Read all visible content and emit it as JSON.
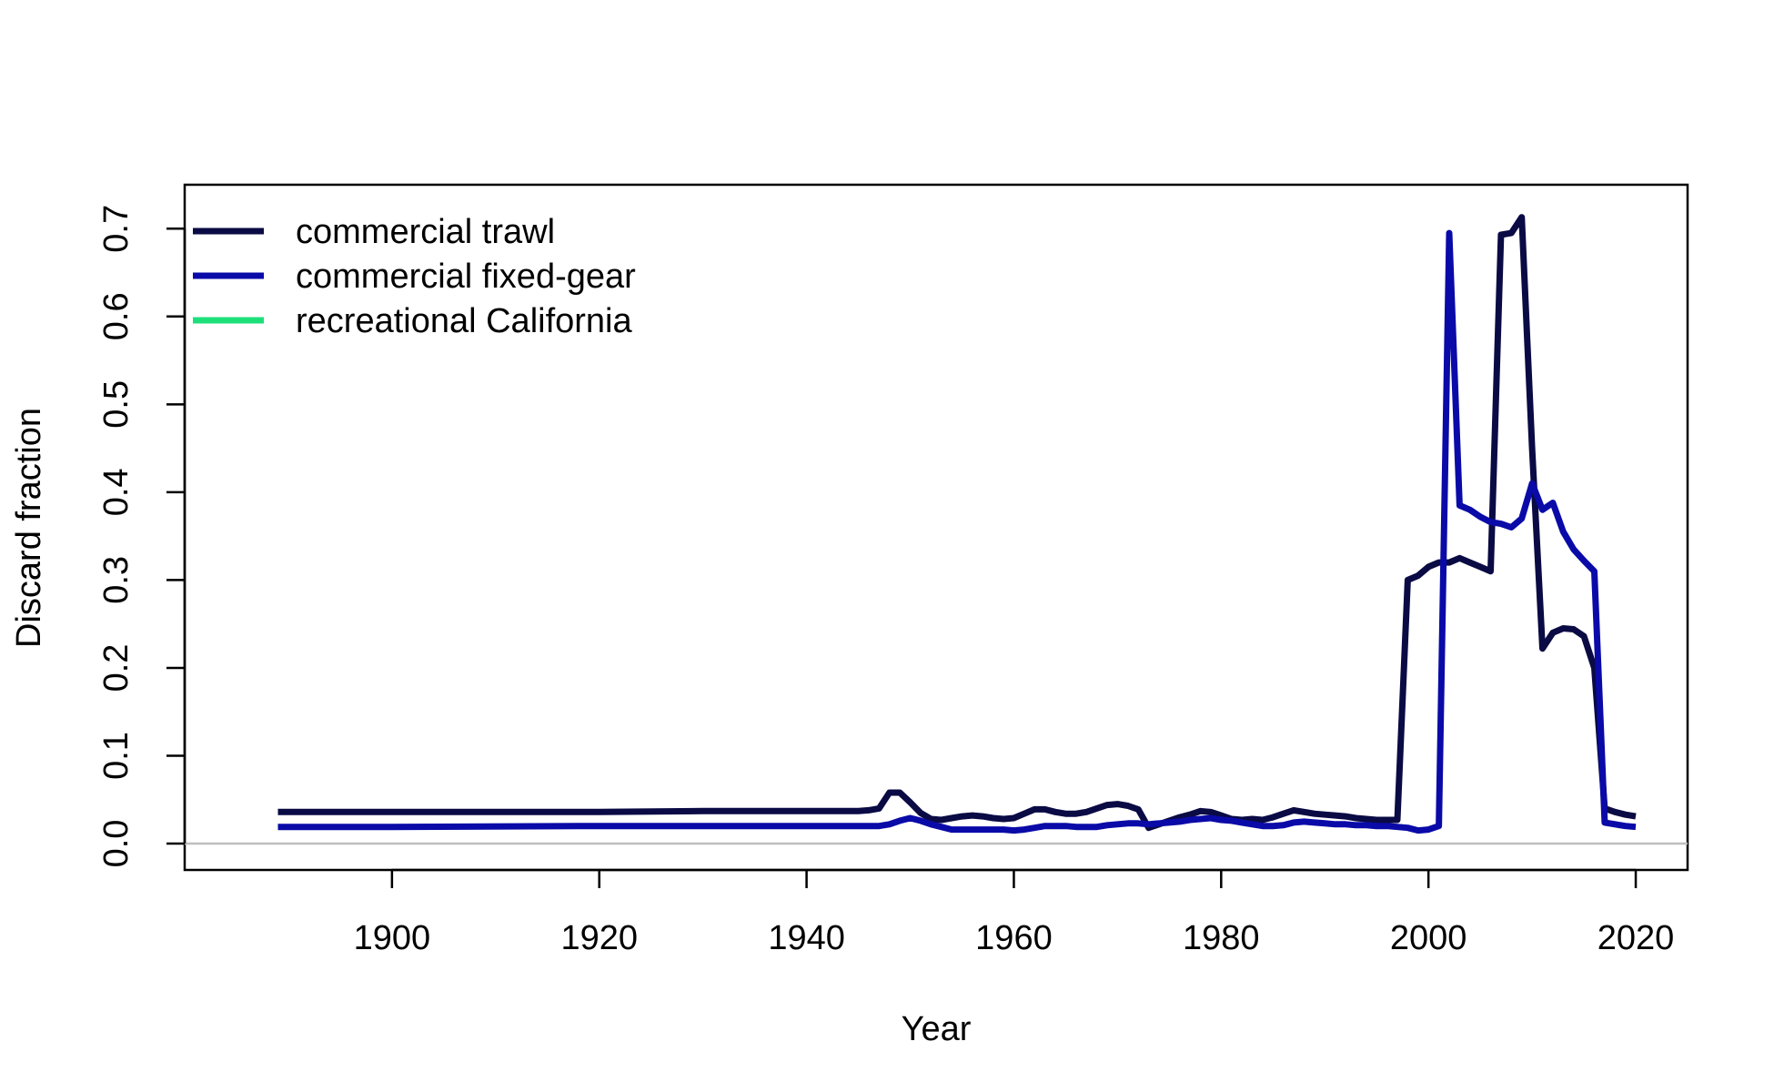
{
  "chart_data": {
    "type": "line",
    "title": "",
    "xlabel": "Year",
    "ylabel": "Discard fraction",
    "xlim": [
      1880,
      2025
    ],
    "ylim": [
      -0.03,
      0.75
    ],
    "xticks": [
      "1900",
      "1920",
      "1940",
      "1960",
      "1980",
      "2000",
      "2020"
    ],
    "yticks": [
      "0.0",
      "0.1",
      "0.2",
      "0.3",
      "0.4",
      "0.5",
      "0.6",
      "0.7"
    ],
    "grid": false,
    "legend_position": "top-left",
    "reference_line": {
      "y": 0,
      "color": "#bebebe"
    },
    "series": [
      {
        "name": "commercial trawl",
        "color": "#0a0a44",
        "x": [
          1889,
          1892,
          1900,
          1920,
          1930,
          1940,
          1945,
          1946,
          1947,
          1948,
          1949,
          1950,
          1951,
          1952,
          1953,
          1954,
          1955,
          1956,
          1957,
          1958,
          1959,
          1960,
          1961,
          1962,
          1963,
          1964,
          1965,
          1966,
          1967,
          1968,
          1969,
          1970,
          1971,
          1972,
          1973,
          1974,
          1975,
          1976,
          1977,
          1978,
          1979,
          1980,
          1981,
          1982,
          1983,
          1984,
          1985,
          1986,
          1987,
          1988,
          1989,
          1990,
          1991,
          1992,
          1993,
          1994,
          1995,
          1996,
          1997,
          1998,
          1999,
          2000,
          2001,
          2002,
          2003,
          2004,
          2005,
          2006,
          2007,
          2008,
          2009,
          2010,
          2011,
          2012,
          2013,
          2014,
          2015,
          2016,
          2017,
          2018,
          2019,
          2020
        ],
        "values": [
          0.036,
          0.036,
          0.036,
          0.036,
          0.037,
          0.037,
          0.037,
          0.038,
          0.04,
          0.058,
          0.058,
          0.047,
          0.035,
          0.028,
          0.027,
          0.029,
          0.031,
          0.032,
          0.031,
          0.029,
          0.028,
          0.029,
          0.034,
          0.039,
          0.039,
          0.036,
          0.034,
          0.034,
          0.036,
          0.04,
          0.044,
          0.045,
          0.043,
          0.039,
          0.018,
          0.022,
          0.026,
          0.03,
          0.033,
          0.037,
          0.036,
          0.032,
          0.028,
          0.027,
          0.028,
          0.027,
          0.03,
          0.034,
          0.038,
          0.036,
          0.034,
          0.033,
          0.032,
          0.031,
          0.029,
          0.028,
          0.027,
          0.027,
          0.027,
          0.3,
          0.305,
          0.315,
          0.32,
          0.32,
          0.325,
          0.32,
          0.315,
          0.31,
          0.693,
          0.695,
          0.713,
          0.45,
          0.222,
          0.24,
          0.245,
          0.244,
          0.236,
          0.2,
          0.04,
          0.036,
          0.033,
          0.031
        ]
      },
      {
        "name": "commercial fixed-gear",
        "color": "#0a0aa8",
        "x": [
          1889,
          1900,
          1920,
          1947,
          1948,
          1949,
          1950,
          1951,
          1952,
          1953,
          1954,
          1955,
          1956,
          1957,
          1958,
          1959,
          1960,
          1961,
          1962,
          1963,
          1964,
          1965,
          1966,
          1967,
          1968,
          1969,
          1970,
          1971,
          1972,
          1973,
          1974,
          1975,
          1976,
          1977,
          1978,
          1979,
          1980,
          1981,
          1982,
          1983,
          1984,
          1985,
          1986,
          1987,
          1988,
          1989,
          1990,
          1991,
          1992,
          1993,
          1994,
          1995,
          1996,
          1997,
          1998,
          1999,
          2000,
          2001,
          2002,
          2003,
          2004,
          2005,
          2006,
          2007,
          2008,
          2009,
          2010,
          2011,
          2012,
          2013,
          2014,
          2015,
          2016,
          2017,
          2018,
          2019,
          2020
        ],
        "values": [
          0.019,
          0.019,
          0.02,
          0.02,
          0.022,
          0.026,
          0.029,
          0.026,
          0.022,
          0.019,
          0.016,
          0.016,
          0.016,
          0.016,
          0.016,
          0.016,
          0.015,
          0.016,
          0.018,
          0.02,
          0.02,
          0.02,
          0.019,
          0.019,
          0.019,
          0.021,
          0.022,
          0.023,
          0.023,
          0.022,
          0.023,
          0.024,
          0.025,
          0.027,
          0.028,
          0.029,
          0.027,
          0.026,
          0.024,
          0.022,
          0.02,
          0.02,
          0.021,
          0.024,
          0.025,
          0.024,
          0.023,
          0.022,
          0.022,
          0.021,
          0.021,
          0.02,
          0.02,
          0.019,
          0.018,
          0.015,
          0.016,
          0.02,
          0.695,
          0.385,
          0.38,
          0.372,
          0.366,
          0.364,
          0.36,
          0.37,
          0.41,
          0.38,
          0.388,
          0.355,
          0.335,
          0.322,
          0.31,
          0.024,
          0.022,
          0.02,
          0.019
        ]
      },
      {
        "name": "recreational California",
        "color": "#1ee07a",
        "x": [],
        "values": []
      }
    ]
  }
}
